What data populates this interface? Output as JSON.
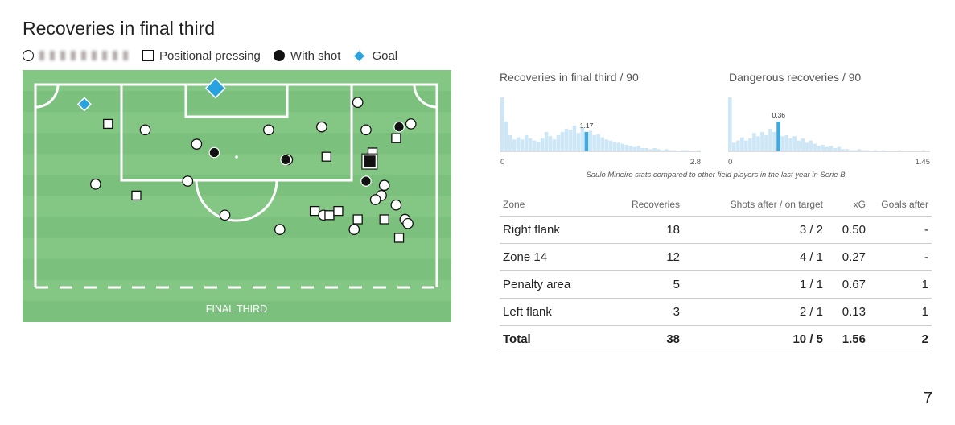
{
  "title": "Recoveries in final third",
  "legend": {
    "items": [
      {
        "label": "",
        "symbol": "circle-open-icon",
        "label_obscured": true
      },
      {
        "label": "Positional pressing",
        "symbol": "square-open-icon"
      },
      {
        "label": "With shot",
        "symbol": "circle-filled-icon"
      },
      {
        "label": "Goal",
        "symbol": "diamond-icon",
        "color": "#29a3e0"
      }
    ]
  },
  "pitch": {
    "label": "FINAL THIRD",
    "colors": {
      "grass_light": "#84c785",
      "grass_dark": "#7bc07c",
      "lines": "#ffffff",
      "goal": "#29a3e0"
    }
  },
  "chart_data": [
    {
      "type": "scatter",
      "description_units": "pitch coordinates in meters; x = across pitch (0-68), y = distance from goal line (0-34)",
      "xlim": [
        0,
        68
      ],
      "ylim": [
        0,
        34
      ],
      "goal_markers": [
        {
          "x": 30.5,
          "y": 0.6,
          "type": "goal",
          "size": "large"
        },
        {
          "x": 8.3,
          "y": 3.3,
          "type": "goal",
          "size": "small"
        }
      ],
      "points": [
        {
          "x": 54.6,
          "y": 3.0,
          "type": "open"
        },
        {
          "x": 12.3,
          "y": 6.6,
          "type": "positional"
        },
        {
          "x": 18.6,
          "y": 7.6,
          "type": "open"
        },
        {
          "x": 39.5,
          "y": 7.6,
          "type": "open"
        },
        {
          "x": 48.5,
          "y": 7.1,
          "type": "open"
        },
        {
          "x": 56.0,
          "y": 7.6,
          "type": "open"
        },
        {
          "x": 61.6,
          "y": 7.1,
          "type": "with_shot"
        },
        {
          "x": 63.6,
          "y": 6.6,
          "type": "open"
        },
        {
          "x": 61.1,
          "y": 9.0,
          "type": "positional"
        },
        {
          "x": 27.3,
          "y": 10.0,
          "type": "open"
        },
        {
          "x": 30.3,
          "y": 11.4,
          "type": "with_shot"
        },
        {
          "x": 42.7,
          "y": 12.6,
          "type": "open"
        },
        {
          "x": 42.4,
          "y": 12.6,
          "type": "with_shot"
        },
        {
          "x": 49.3,
          "y": 12.1,
          "type": "positional"
        },
        {
          "x": 57.1,
          "y": 11.4,
          "type": "positional"
        },
        {
          "x": 56.6,
          "y": 12.9,
          "type": "positional",
          "size": "large"
        },
        {
          "x": 10.2,
          "y": 16.7,
          "type": "open"
        },
        {
          "x": 25.8,
          "y": 16.2,
          "type": "open"
        },
        {
          "x": 56.0,
          "y": 16.2,
          "type": "with_shot"
        },
        {
          "x": 59.1,
          "y": 16.9,
          "type": "open"
        },
        {
          "x": 17.1,
          "y": 18.6,
          "type": "positional"
        },
        {
          "x": 58.6,
          "y": 18.6,
          "type": "open"
        },
        {
          "x": 57.6,
          "y": 19.3,
          "type": "open"
        },
        {
          "x": 61.1,
          "y": 20.2,
          "type": "open"
        },
        {
          "x": 32.1,
          "y": 21.9,
          "type": "open"
        },
        {
          "x": 47.3,
          "y": 21.2,
          "type": "positional"
        },
        {
          "x": 48.8,
          "y": 21.9,
          "type": "open"
        },
        {
          "x": 49.8,
          "y": 21.9,
          "type": "positional"
        },
        {
          "x": 51.3,
          "y": 21.2,
          "type": "positional"
        },
        {
          "x": 54.6,
          "y": 22.6,
          "type": "positional"
        },
        {
          "x": 59.1,
          "y": 22.6,
          "type": "positional"
        },
        {
          "x": 62.6,
          "y": 22.6,
          "type": "open"
        },
        {
          "x": 63.1,
          "y": 23.3,
          "type": "open"
        },
        {
          "x": 41.4,
          "y": 24.3,
          "type": "open"
        },
        {
          "x": 54.0,
          "y": 24.3,
          "type": "open"
        },
        {
          "x": 61.6,
          "y": 25.7,
          "type": "positional"
        }
      ]
    },
    {
      "type": "bar",
      "title": "Recoveries in final third / 90",
      "xlim": [
        0,
        2.8
      ],
      "tick_labels": [
        "0",
        "2.8"
      ],
      "highlight": {
        "bin_index": 21,
        "value": 1.17,
        "label": "1.17"
      },
      "values": [
        100,
        55,
        30,
        22,
        26,
        22,
        30,
        24,
        20,
        18,
        24,
        36,
        28,
        22,
        30,
        36,
        42,
        40,
        48,
        34,
        44,
        36,
        38,
        30,
        32,
        26,
        22,
        20,
        18,
        16,
        14,
        12,
        10,
        8,
        10,
        6,
        6,
        4,
        6,
        4,
        2,
        4,
        2,
        2,
        0,
        2,
        2,
        0,
        0,
        2
      ]
    },
    {
      "type": "bar",
      "title": "Dangerous recoveries / 90",
      "xlim": [
        0,
        1.45
      ],
      "tick_labels": [
        "0",
        "1.45"
      ],
      "highlight": {
        "bin_index": 12,
        "value": 0.36,
        "label": "0.36"
      },
      "values": [
        100,
        16,
        20,
        26,
        20,
        24,
        34,
        28,
        36,
        30,
        42,
        36,
        55,
        28,
        30,
        24,
        28,
        20,
        24,
        16,
        20,
        14,
        10,
        12,
        8,
        10,
        6,
        8,
        4,
        4,
        2,
        2,
        4,
        2,
        2,
        0,
        2,
        0,
        2,
        0,
        0,
        0,
        2,
        0,
        0,
        0,
        0,
        0,
        2,
        0
      ]
    }
  ],
  "hist_note": "Saulo Mineiro stats compared to other field players in the last year in Serie B",
  "hist_colors": {
    "bar": "#cde7f7",
    "highlight": "#3fa9e1",
    "axis": "#bbbbbb"
  },
  "table": {
    "headers": [
      "Zone",
      "Recoveries",
      "Shots after / on target",
      "xG",
      "Goals after"
    ],
    "rows": [
      [
        "Right flank",
        "18",
        "3 / 2",
        "0.50",
        "-"
      ],
      [
        "Zone 14",
        "12",
        "4 / 1",
        "0.27",
        "-"
      ],
      [
        "Penalty area",
        "5",
        "1 / 1",
        "0.67",
        "1"
      ],
      [
        "Left flank",
        "3",
        "2 / 1",
        "0.13",
        "1"
      ]
    ],
    "total": [
      "Total",
      "38",
      "10 / 5",
      "1.56",
      "2"
    ]
  },
  "page_number": "7"
}
